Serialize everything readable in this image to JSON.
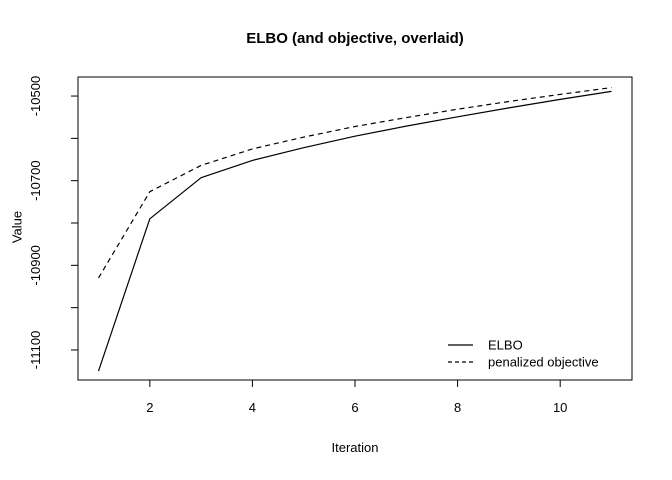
{
  "chart_data": {
    "type": "line",
    "title": "ELBO (and objective, overlaid)",
    "xlabel": "Iteration",
    "ylabel": "Value",
    "x": [
      1,
      2,
      3,
      4,
      5,
      6,
      7,
      8,
      9,
      10,
      11
    ],
    "series": [
      {
        "name": "ELBO",
        "style": "solid",
        "values": [
          -11150,
          -10790,
          -10693,
          -10652,
          -10622,
          -10595,
          -10571,
          -10549,
          -10528,
          -10508,
          -10489
        ]
      },
      {
        "name": "penalized objective",
        "style": "dashed",
        "values": [
          -10930,
          -10726,
          -10664,
          -10625,
          -10597,
          -10572,
          -10551,
          -10531,
          -10513,
          -10496,
          -10480
        ]
      }
    ],
    "xlim": [
      0.6,
      11.4
    ],
    "ylim": [
      -11171,
      -10455
    ],
    "xticks": [
      2,
      4,
      6,
      8,
      10
    ],
    "yticks": [
      -10500,
      -10600,
      -10700,
      -10800,
      -10900,
      -11000,
      -11100
    ],
    "ytick_labels": [
      {
        "value": -10500,
        "label": "-10500"
      },
      {
        "value": -10700,
        "label": "-10700"
      },
      {
        "value": -10900,
        "label": "-10900"
      },
      {
        "value": -11100,
        "label": "-11100"
      }
    ],
    "grid": false,
    "legend_position": "bottom-right",
    "line_color": "#000000",
    "background": "#ffffff"
  }
}
